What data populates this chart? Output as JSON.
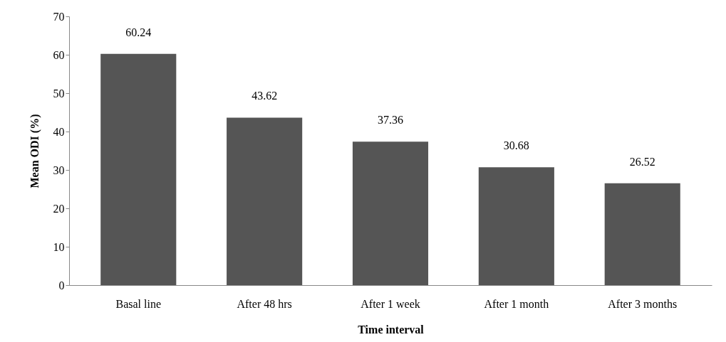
{
  "chart_data": {
    "type": "bar",
    "xlabel": "Time interval",
    "ylabel": "Mean ODI (%)",
    "categories": [
      "Basal line",
      "After 48 hrs",
      "After 1 week",
      "After 1 month",
      "After 3 months"
    ],
    "values": [
      60.24,
      43.62,
      37.36,
      30.68,
      26.52
    ],
    "color": "#555555",
    "ylim": [
      0,
      70
    ],
    "yticks": [
      0,
      10,
      20,
      30,
      40,
      50,
      60,
      70
    ],
    "grid": false,
    "data_labels": true
  }
}
